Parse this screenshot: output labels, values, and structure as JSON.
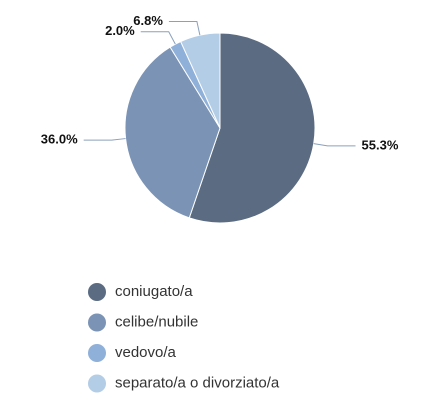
{
  "chart_data": {
    "type": "pie",
    "categories": [
      "coniugato/a",
      "celibe/nubile",
      "vedovo/a",
      "separato/a o divorziato/a"
    ],
    "values": [
      55.3,
      36.0,
      2.0,
      6.8
    ],
    "value_labels": [
      "55.3%",
      "36.0%",
      "2.0%",
      "6.8%"
    ],
    "colors": [
      "#5a6b82",
      "#7b93b5",
      "#8fb0d9",
      "#b3cde6"
    ]
  }
}
